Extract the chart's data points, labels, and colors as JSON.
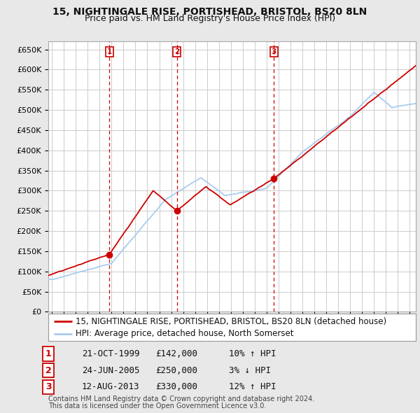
{
  "title": "15, NIGHTINGALE RISE, PORTISHEAD, BRISTOL, BS20 8LN",
  "subtitle": "Price paid vs. HM Land Registry's House Price Index (HPI)",
  "ylim": [
    0,
    670000
  ],
  "yticks": [
    0,
    50000,
    100000,
    150000,
    200000,
    250000,
    300000,
    350000,
    400000,
    450000,
    500000,
    550000,
    600000,
    650000
  ],
  "xlim_start": 1994.7,
  "xlim_end": 2025.5,
  "bg_color": "#e8e8e8",
  "plot_bg_color": "#ffffff",
  "grid_color": "#cccccc",
  "red_line_color": "#cc0000",
  "blue_line_color": "#aaccee",
  "sale_marker_color": "#cc0000",
  "vline_color": "#cc0000",
  "purchases": [
    {
      "num": 1,
      "date_str": "21-OCT-1999",
      "date_x": 1999.81,
      "price": 142000,
      "pct": "10%",
      "direction": "↑"
    },
    {
      "num": 2,
      "date_str": "24-JUN-2005",
      "date_x": 2005.48,
      "price": 250000,
      "pct": "3%",
      "direction": "↓"
    },
    {
      "num": 3,
      "date_str": "12-AUG-2013",
      "date_x": 2013.61,
      "price": 330000,
      "pct": "12%",
      "direction": "↑"
    }
  ],
  "legend_line1": "15, NIGHTINGALE RISE, PORTISHEAD, BRISTOL, BS20 8LN (detached house)",
  "legend_line2": "HPI: Average price, detached house, North Somerset",
  "footnote1": "Contains HM Land Registry data © Crown copyright and database right 2024.",
  "footnote2": "This data is licensed under the Open Government Licence v3.0.",
  "title_fontsize": 10,
  "subtitle_fontsize": 9,
  "tick_fontsize": 8,
  "legend_fontsize": 8.5,
  "table_fontsize": 9,
  "footnote_fontsize": 7
}
